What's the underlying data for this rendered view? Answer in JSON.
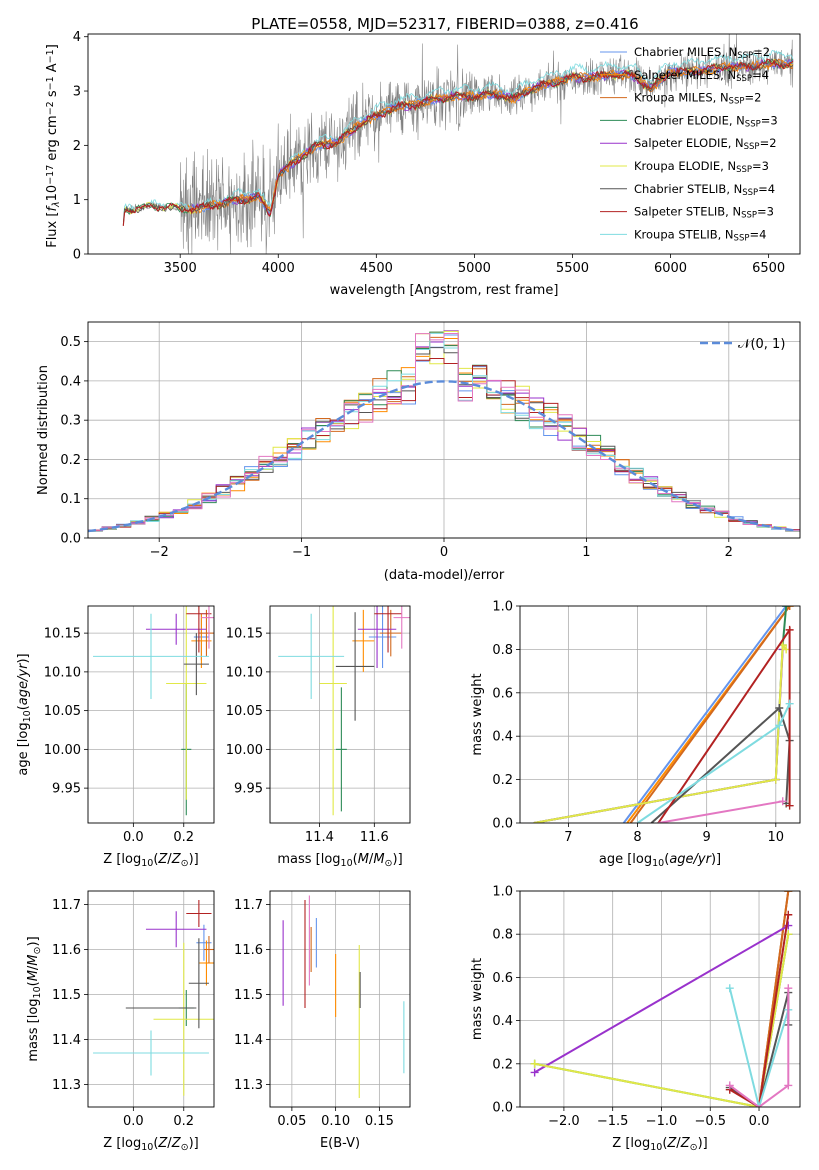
{
  "title": "PLATE=0558, MJD=52317, FIBERID=0388, z=0.416",
  "colors": {
    "chabrier_miles": "#6495ed",
    "salpeter_miles": "#ff8c00",
    "kroupa_miles": "#d2691e",
    "chabrier_elodie": "#2e8b57",
    "salpeter_elodie": "#9932cc",
    "kroupa_elodie": "#e1e847",
    "chabrier_stelib": "#555555",
    "salpeter_stelib": "#b22222",
    "kroupa_stelib": "#7fdbe0",
    "extra": "#e377c2",
    "gauss": "#5b8bd9"
  },
  "chart_data": [
    {
      "id": "spectrum",
      "type": "line",
      "xlabel": "wavelength [Angstrom, rest frame]",
      "ylabel_parts": [
        "Flux [",
        "f",
        "λ",
        "10",
        "−17",
        " erg cm",
        "−2",
        " s",
        "−1",
        " A",
        "−1",
        "]"
      ],
      "xlim": [
        3030,
        6660
      ],
      "ylim": [
        0,
        4.05
      ],
      "xticks": [
        3500,
        4000,
        4500,
        5000,
        5500,
        6000,
        6500
      ],
      "yticks": [
        0,
        1,
        2,
        3,
        4
      ],
      "legend_position": "right",
      "legend": [
        {
          "name": "Chabrier MILES",
          "nssp": "2",
          "color_key": "chabrier_miles"
        },
        {
          "name": "Salpeter MILES",
          "nssp": "4",
          "color_key": "salpeter_miles"
        },
        {
          "name": "Kroupa MILES",
          "nssp": "2",
          "color_key": "kroupa_miles"
        },
        {
          "name": "Chabrier ELODIE",
          "nssp": "3",
          "color_key": "chabrier_elodie"
        },
        {
          "name": "Salpeter ELODIE",
          "nssp": "2",
          "color_key": "salpeter_elodie"
        },
        {
          "name": "Kroupa ELODIE",
          "nssp": "3",
          "color_key": "kroupa_elodie"
        },
        {
          "name": "Chabrier STELIB",
          "nssp": "4",
          "color_key": "chabrier_stelib"
        },
        {
          "name": "Salpeter STELIB",
          "nssp": "3",
          "color_key": "salpeter_stelib"
        },
        {
          "name": "Kroupa STELIB",
          "nssp": "4",
          "color_key": "kroupa_stelib"
        }
      ],
      "model_continuum": [
        [
          3200,
          0
        ],
        [
          3215,
          0.8
        ],
        [
          3300,
          0.85
        ],
        [
          3400,
          0.88
        ],
        [
          3500,
          0.82
        ],
        [
          3600,
          0.85
        ],
        [
          3700,
          0.92
        ],
        [
          3800,
          1.0
        ],
        [
          3900,
          1.05
        ],
        [
          3960,
          0.75
        ],
        [
          4000,
          1.45
        ],
        [
          4100,
          1.75
        ],
        [
          4200,
          2.0
        ],
        [
          4300,
          2.05
        ],
        [
          4400,
          2.35
        ],
        [
          4500,
          2.55
        ],
        [
          4600,
          2.7
        ],
        [
          4700,
          2.75
        ],
        [
          4800,
          2.85
        ],
        [
          4900,
          2.9
        ],
        [
          5000,
          2.9
        ],
        [
          5100,
          2.95
        ],
        [
          5200,
          2.85
        ],
        [
          5300,
          3.05
        ],
        [
          5400,
          3.15
        ],
        [
          5500,
          3.25
        ],
        [
          5600,
          3.25
        ],
        [
          5700,
          3.3
        ],
        [
          5800,
          3.3
        ],
        [
          5900,
          3.05
        ],
        [
          6000,
          3.35
        ],
        [
          6100,
          3.35
        ],
        [
          6200,
          3.4
        ],
        [
          6300,
          3.45
        ],
        [
          6400,
          3.45
        ],
        [
          6500,
          3.5
        ],
        [
          6620,
          3.5
        ]
      ]
    },
    {
      "id": "residuals",
      "type": "histogram",
      "xlabel": "(data-model)/error",
      "ylabel": "Normed distribution",
      "xlim": [
        -2.5,
        2.5
      ],
      "ylim": [
        0,
        0.55
      ],
      "xticks": [
        -2,
        -1,
        0,
        1,
        2
      ],
      "yticks": [
        0.0,
        0.1,
        0.2,
        0.3,
        0.4,
        0.5
      ],
      "bin_width": 0.1,
      "gauss_label": "𝒩(0, 1)",
      "legend_position": "top-right"
    },
    {
      "id": "age_vs_Z",
      "type": "scatter",
      "xlabel": "Z [log10(Z/Z⊙)]",
      "ylabel": "age  [log10(age/yr)]",
      "xlim": [
        -0.18,
        0.32
      ],
      "ylim": [
        9.905,
        10.185
      ],
      "xticks": [
        0.0,
        0.2
      ],
      "yticks": [
        9.95,
        10.0,
        10.05,
        10.1,
        10.15
      ],
      "points": [
        {
          "c": "chabrier_miles",
          "x": 0.27,
          "y": 10.145,
          "ex": 0.03,
          "ey": 0.03
        },
        {
          "c": "salpeter_miles",
          "x": 0.27,
          "y": 10.14,
          "ex": 0.04,
          "ey": 0.035
        },
        {
          "c": "kroupa_miles",
          "x": 0.29,
          "y": 10.15,
          "ex": 0.03,
          "ey": 0.03
        },
        {
          "c": "chabrier_elodie",
          "x": 0.21,
          "y": 10.0,
          "ex": 0.02,
          "ey": 0.085
        },
        {
          "c": "salpeter_elodie",
          "x": 0.17,
          "y": 10.155,
          "ex": 0.12,
          "ey": 0.02
        },
        {
          "c": "kroupa_elodie",
          "x": 0.21,
          "y": 10.085,
          "ex": 0.08,
          "ey": 0.15
        },
        {
          "c": "chabrier_stelib",
          "x": 0.25,
          "y": 10.11,
          "ex": 0.05,
          "ey": 0.04
        },
        {
          "c": "salpeter_stelib",
          "x": 0.26,
          "y": 10.175,
          "ex": 0.05,
          "ey": 0.05
        },
        {
          "c": "kroupa_stelib",
          "x": 0.07,
          "y": 10.12,
          "ex": 0.23,
          "ey": 0.055
        },
        {
          "c": "extra",
          "x": 0.3,
          "y": 10.17,
          "ex": 0.03,
          "ey": 0.04
        }
      ]
    },
    {
      "id": "age_vs_mass",
      "type": "scatter",
      "xlabel": "mass [log10(M/M⊙)]",
      "ylabel": "",
      "xlim": [
        11.22,
        11.73
      ],
      "ylim": [
        9.905,
        10.185
      ],
      "xticks": [
        11.4,
        11.6
      ],
      "yticks": [
        9.95,
        10.0,
        10.05,
        10.1,
        10.15
      ],
      "points": [
        {
          "c": "chabrier_miles",
          "x": 11.63,
          "y": 10.145,
          "ex": 0.05,
          "ey": 0.04
        },
        {
          "c": "salpeter_miles",
          "x": 11.56,
          "y": 10.14,
          "ex": 0.04,
          "ey": 0.04
        },
        {
          "c": "kroupa_miles",
          "x": 11.66,
          "y": 10.15,
          "ex": 0.04,
          "ey": 0.03
        },
        {
          "c": "chabrier_elodie",
          "x": 11.48,
          "y": 10.0,
          "ex": 0.02,
          "ey": 0.08
        },
        {
          "c": "salpeter_elodie",
          "x": 11.61,
          "y": 10.155,
          "ex": 0.07,
          "ey": 0.05
        },
        {
          "c": "kroupa_elodie",
          "x": 11.45,
          "y": 10.085,
          "ex": 0.05,
          "ey": 0.17
        },
        {
          "c": "chabrier_stelib",
          "x": 11.53,
          "y": 10.107,
          "ex": 0.07,
          "ey": 0.07
        },
        {
          "c": "salpeter_stelib",
          "x": 11.65,
          "y": 10.175,
          "ex": 0.05,
          "ey": 0.05
        },
        {
          "c": "kroupa_stelib",
          "x": 11.37,
          "y": 10.12,
          "ex": 0.12,
          "ey": 0.055
        },
        {
          "c": "extra",
          "x": 11.7,
          "y": 10.17,
          "ex": 0.03,
          "ey": 0.04
        }
      ]
    },
    {
      "id": "mass_weight_vs_age",
      "type": "line",
      "xlabel": "age  [log10(age/yr)]",
      "ylabel": "mass weight",
      "xlim": [
        6.3,
        10.35
      ],
      "ylim": [
        0,
        1
      ],
      "xticks": [
        7,
        8,
        9,
        10
      ],
      "yticks": [
        0.0,
        0.2,
        0.4,
        0.6,
        0.8,
        1.0
      ],
      "series": [
        {
          "c": "chabrier_miles",
          "pts": [
            [
              7.8,
              0
            ],
            [
              10.15,
              1.0
            ],
            [
              10.15,
              1.0
            ]
          ]
        },
        {
          "c": "salpeter_miles",
          "pts": [
            [
              7.85,
              0
            ],
            [
              10.2,
              1.0
            ]
          ]
        },
        {
          "c": "kroupa_miles",
          "pts": [
            [
              7.9,
              0
            ],
            [
              10.2,
              1.0
            ]
          ]
        },
        {
          "c": "chabrier_elodie",
          "pts": [
            [
              6.5,
              0
            ],
            [
              10.0,
              0.2
            ],
            [
              10.1,
              0.82
            ],
            [
              10.15,
              1.0
            ]
          ]
        },
        {
          "c": "salpeter_elodie",
          "pts": [
            [
              6.5,
              0
            ],
            [
              10.0,
              0.2
            ],
            [
              10.1,
              0.8
            ]
          ]
        },
        {
          "c": "kroupa_elodie",
          "pts": [
            [
              6.5,
              0
            ],
            [
              10.0,
              0.2
            ],
            [
              10.1,
              0.82
            ],
            [
              10.15,
              0.8
            ]
          ]
        },
        {
          "c": "chabrier_stelib",
          "pts": [
            [
              8.2,
              0
            ],
            [
              10.05,
              0.53
            ],
            [
              10.2,
              0.38
            ],
            [
              10.15,
              0.09
            ]
          ]
        },
        {
          "c": "salpeter_stelib",
          "pts": [
            [
              8.3,
              0
            ],
            [
              10.2,
              0.89
            ],
            [
              10.2,
              0.08
            ]
          ]
        },
        {
          "c": "kroupa_stelib",
          "pts": [
            [
              8.0,
              0
            ],
            [
              10.05,
              0.45
            ],
            [
              10.2,
              0.55
            ]
          ]
        },
        {
          "c": "extra",
          "pts": [
            [
              8.3,
              0
            ],
            [
              10.1,
              0.1
            ]
          ]
        }
      ]
    },
    {
      "id": "mass_vs_Z",
      "type": "scatter",
      "xlabel": "Z [log10(Z/Z⊙)]",
      "ylabel": "mass [log10(M/M⊙)]",
      "xlim": [
        -0.18,
        0.32
      ],
      "ylim": [
        11.25,
        11.73
      ],
      "xticks": [
        0.0,
        0.2
      ],
      "yticks": [
        11.3,
        11.4,
        11.5,
        11.6,
        11.7
      ],
      "points": [
        {
          "c": "chabrier_miles",
          "x": 0.28,
          "y": 11.615,
          "ex": 0.03,
          "ey": 0.04
        },
        {
          "c": "salpeter_miles",
          "x": 0.29,
          "y": 11.57,
          "ex": 0.03,
          "ey": 0.05
        },
        {
          "c": "kroupa_miles",
          "x": 0.3,
          "y": 11.6,
          "ex": 0.02,
          "ey": 0.03
        },
        {
          "c": "chabrier_elodie",
          "x": 0.21,
          "y": 11.47,
          "ex": 0.03,
          "ey": 0.04
        },
        {
          "c": "salpeter_elodie",
          "x": 0.17,
          "y": 11.645,
          "ex": 0.12,
          "ey": 0.04
        },
        {
          "c": "kroupa_elodie",
          "x": 0.2,
          "y": 11.445,
          "ex": 0.12,
          "ey": 0.17
        },
        {
          "c": "chabrier_stelib",
          "x": 0.26,
          "y": 11.525,
          "ex": 0.04,
          "ey": 0.1
        },
        {
          "c": "salpeter_stelib",
          "x": 0.26,
          "y": 11.68,
          "ex": 0.05,
          "ey": 0.03
        },
        {
          "c": "kroupa_stelib",
          "x": 0.07,
          "y": 11.37,
          "ex": 0.23,
          "ey": 0.05
        },
        {
          "c": "chabrier_stelib",
          "x": 0.11,
          "y": 11.47,
          "ex": 0.14,
          "ey": 0.0
        }
      ]
    },
    {
      "id": "mass_vs_ebv",
      "type": "scatter",
      "xlabel": "E(B-V)",
      "ylabel": "",
      "xlim": [
        0.025,
        0.185
      ],
      "ylim": [
        11.25,
        11.73
      ],
      "xticks": [
        0.05,
        0.1,
        0.15
      ],
      "yticks": [
        11.3,
        11.4,
        11.5,
        11.6,
        11.7
      ],
      "points": [
        {
          "c": "chabrier_miles",
          "x": 0.078,
          "y": 11.615,
          "ex": 0,
          "ey": 0.055
        },
        {
          "c": "salpeter_miles",
          "x": 0.1,
          "y": 11.52,
          "ex": 0,
          "ey": 0.07
        },
        {
          "c": "kroupa_miles",
          "x": 0.072,
          "y": 11.6,
          "ex": 0,
          "ey": 0.05
        },
        {
          "c": "salpeter_elodie",
          "x": 0.04,
          "y": 11.57,
          "ex": 0,
          "ey": 0.095
        },
        {
          "c": "kroupa_elodie",
          "x": 0.127,
          "y": 11.44,
          "ex": 0,
          "ey": 0.17
        },
        {
          "c": "chabrier_stelib",
          "x": 0.128,
          "y": 11.51,
          "ex": 0,
          "ey": 0.04
        },
        {
          "c": "salpeter_stelib",
          "x": 0.065,
          "y": 11.59,
          "ex": 0,
          "ey": 0.12
        },
        {
          "c": "kroupa_stelib",
          "x": 0.178,
          "y": 11.405,
          "ex": 0,
          "ey": 0.08
        },
        {
          "c": "extra",
          "x": 0.07,
          "y": 11.62,
          "ex": 0,
          "ey": 0.1
        }
      ]
    },
    {
      "id": "mass_weight_vs_Z",
      "type": "line",
      "xlabel": "Z [log10(Z/Z⊙)]",
      "ylabel": "mass weight",
      "xlim": [
        -2.45,
        0.42
      ],
      "ylim": [
        0,
        1
      ],
      "xticks": [
        -2.0,
        -1.5,
        -1.0,
        -0.5,
        0.0
      ],
      "yticks": [
        0.0,
        0.2,
        0.4,
        0.6,
        0.8,
        1.0
      ],
      "series": [
        {
          "c": "chabrier_miles",
          "pts": [
            [
              0,
              0
            ],
            [
              0.3,
              1.0
            ]
          ]
        },
        {
          "c": "salpeter_miles",
          "pts": [
            [
              0,
              0
            ],
            [
              0.3,
              1.0
            ]
          ]
        },
        {
          "c": "kroupa_miles",
          "pts": [
            [
              0,
              0
            ],
            [
              0.3,
              1.0
            ]
          ]
        },
        {
          "c": "chabrier_elodie",
          "pts": [
            [
              -2.3,
              0.2
            ],
            [
              0,
              0
            ],
            [
              0.3,
              0.8
            ]
          ]
        },
        {
          "c": "salpeter_elodie",
          "pts": [
            [
              -2.3,
              0.16
            ],
            [
              0.3,
              0.84
            ]
          ]
        },
        {
          "c": "kroupa_elodie",
          "pts": [
            [
              -2.3,
              0.2
            ],
            [
              0,
              0
            ],
            [
              0.3,
              0.8
            ]
          ]
        },
        {
          "c": "chabrier_stelib",
          "pts": [
            [
              -0.3,
              0.09
            ],
            [
              0,
              0
            ],
            [
              0.3,
              0.53
            ],
            [
              0.3,
              0.38
            ]
          ]
        },
        {
          "c": "salpeter_stelib",
          "pts": [
            [
              -0.3,
              0.08
            ],
            [
              0,
              0
            ],
            [
              0.3,
              0.89
            ]
          ]
        },
        {
          "c": "kroupa_stelib",
          "pts": [
            [
              -0.3,
              0.55
            ],
            [
              0,
              0
            ],
            [
              0.3,
              0.45
            ]
          ]
        },
        {
          "c": "extra",
          "pts": [
            [
              -0.3,
              0.1
            ],
            [
              0,
              0
            ],
            [
              0.3,
              0.1
            ],
            [
              0.3,
              0.55
            ]
          ]
        }
      ]
    }
  ]
}
